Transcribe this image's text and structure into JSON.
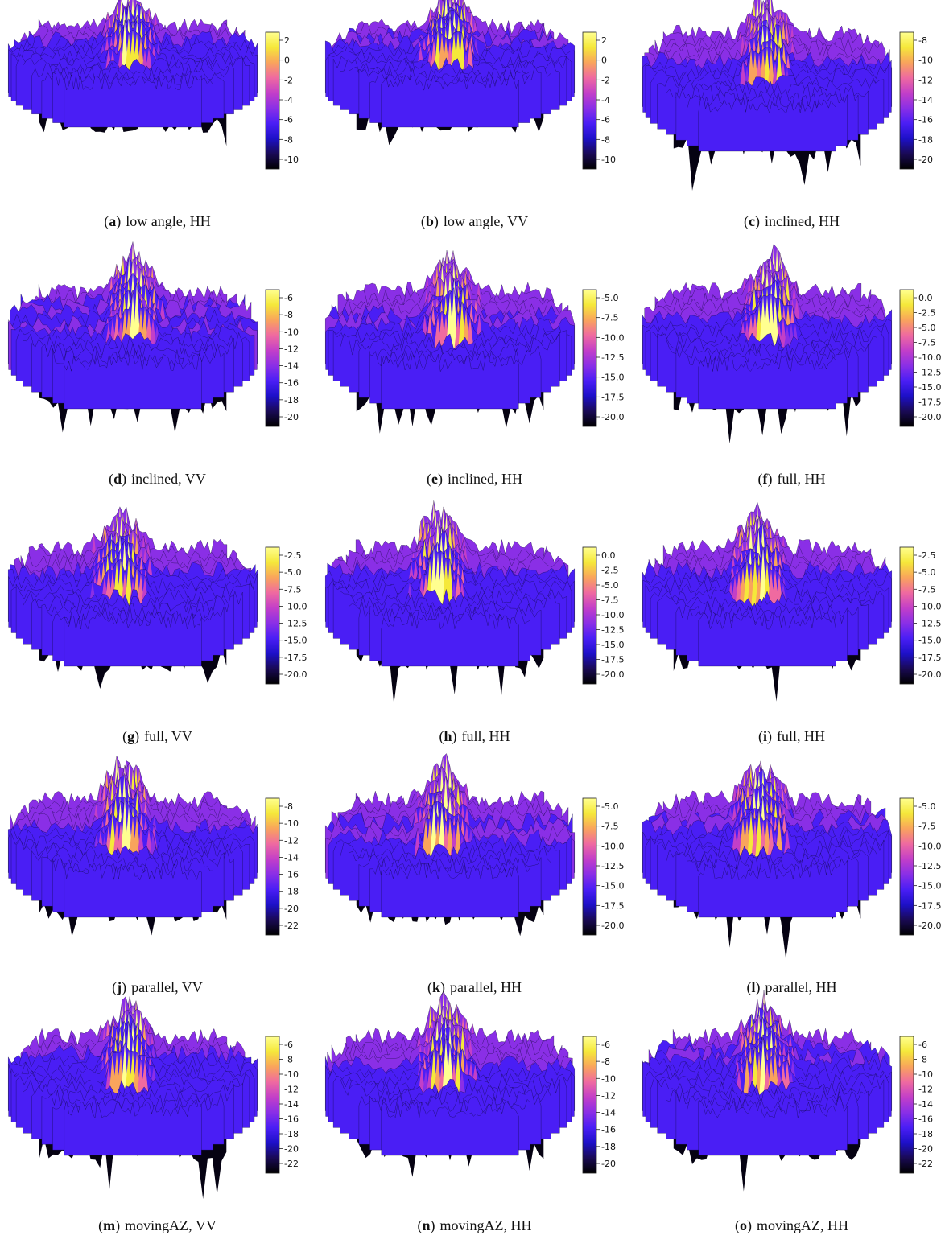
{
  "panels": [
    {
      "letter": "a",
      "text": "low angle, HH",
      "colorbar": {
        "ticks": [
          "2",
          "0",
          "-2",
          "-4",
          "-6",
          "-8",
          "-10"
        ]
      }
    },
    {
      "letter": "b",
      "text": "low angle, VV",
      "colorbar": {
        "ticks": [
          "2",
          "0",
          "-2",
          "-4",
          "-6",
          "-8",
          "-10"
        ]
      }
    },
    {
      "letter": "c",
      "text": "inclined, HH",
      "colorbar": {
        "ticks": [
          "-8",
          "-10",
          "-12",
          "-14",
          "-16",
          "-18",
          "-20"
        ]
      }
    },
    {
      "letter": "d",
      "text": "inclined, VV",
      "colorbar": {
        "ticks": [
          "-6",
          "-8",
          "-10",
          "-12",
          "-14",
          "-16",
          "-18",
          "-20"
        ]
      }
    },
    {
      "letter": "e",
      "text": "inclined, HH",
      "colorbar": {
        "ticks": [
          "-5.0",
          "-7.5",
          "-10.0",
          "-12.5",
          "-15.0",
          "-17.5",
          "-20.0"
        ]
      }
    },
    {
      "letter": "f",
      "text": "full, HH",
      "colorbar": {
        "ticks": [
          "0.0",
          "-2.5",
          "-5.0",
          "-7.5",
          "-10.0",
          "-12.5",
          "-15.0",
          "-17.5",
          "-20.0"
        ]
      }
    },
    {
      "letter": "g",
      "text": "full, VV",
      "colorbar": {
        "ticks": [
          "-2.5",
          "-5.0",
          "-7.5",
          "-10.0",
          "-12.5",
          "-15.0",
          "-17.5",
          "-20.0"
        ]
      }
    },
    {
      "letter": "h",
      "text": "full, HH",
      "colorbar": {
        "ticks": [
          "0.0",
          "-2.5",
          "-5.0",
          "-7.5",
          "-10.0",
          "-12.5",
          "-15.0",
          "-17.5",
          "-20.0"
        ]
      }
    },
    {
      "letter": "i",
      "text": "full, HH",
      "colorbar": {
        "ticks": [
          "-2.5",
          "-5.0",
          "-7.5",
          "-10.0",
          "-12.5",
          "-15.0",
          "-17.5",
          "-20.0"
        ]
      }
    },
    {
      "letter": "j",
      "text": "parallel, VV",
      "colorbar": {
        "ticks": [
          "-8",
          "-10",
          "-12",
          "-14",
          "-16",
          "-18",
          "-20",
          "-22"
        ]
      }
    },
    {
      "letter": "k",
      "text": "parallel, HH",
      "colorbar": {
        "ticks": [
          "-5.0",
          "-7.5",
          "-10.0",
          "-12.5",
          "-15.0",
          "-17.5",
          "-20.0"
        ]
      }
    },
    {
      "letter": "l",
      "text": "parallel, HH",
      "colorbar": {
        "ticks": [
          "-5.0",
          "-7.5",
          "-10.0",
          "-12.5",
          "-15.0",
          "-17.5",
          "-20.0"
        ]
      }
    },
    {
      "letter": "m",
      "text": "movingAZ, VV",
      "colorbar": {
        "ticks": [
          "-6",
          "-8",
          "-10",
          "-12",
          "-14",
          "-16",
          "-18",
          "-20",
          "-22"
        ]
      }
    },
    {
      "letter": "n",
      "text": "movingAZ, HH",
      "colorbar": {
        "ticks": [
          "-6",
          "-8",
          "-10",
          "-12",
          "-14",
          "-16",
          "-18",
          "-20"
        ]
      }
    },
    {
      "letter": "o",
      "text": "movingAZ, HH",
      "colorbar": {
        "ticks": [
          "-6",
          "-8",
          "-10",
          "-12",
          "-14",
          "-16",
          "-18",
          "-20",
          "-22"
        ]
      }
    }
  ],
  "colormap": [
    "#000000",
    "#1a0a55",
    "#1d10c8",
    "#4a1ef5",
    "#8a2fe6",
    "#c33fc8",
    "#ef6aa0",
    "#f9a45c",
    "#f5e83a",
    "#ffff90"
  ]
}
